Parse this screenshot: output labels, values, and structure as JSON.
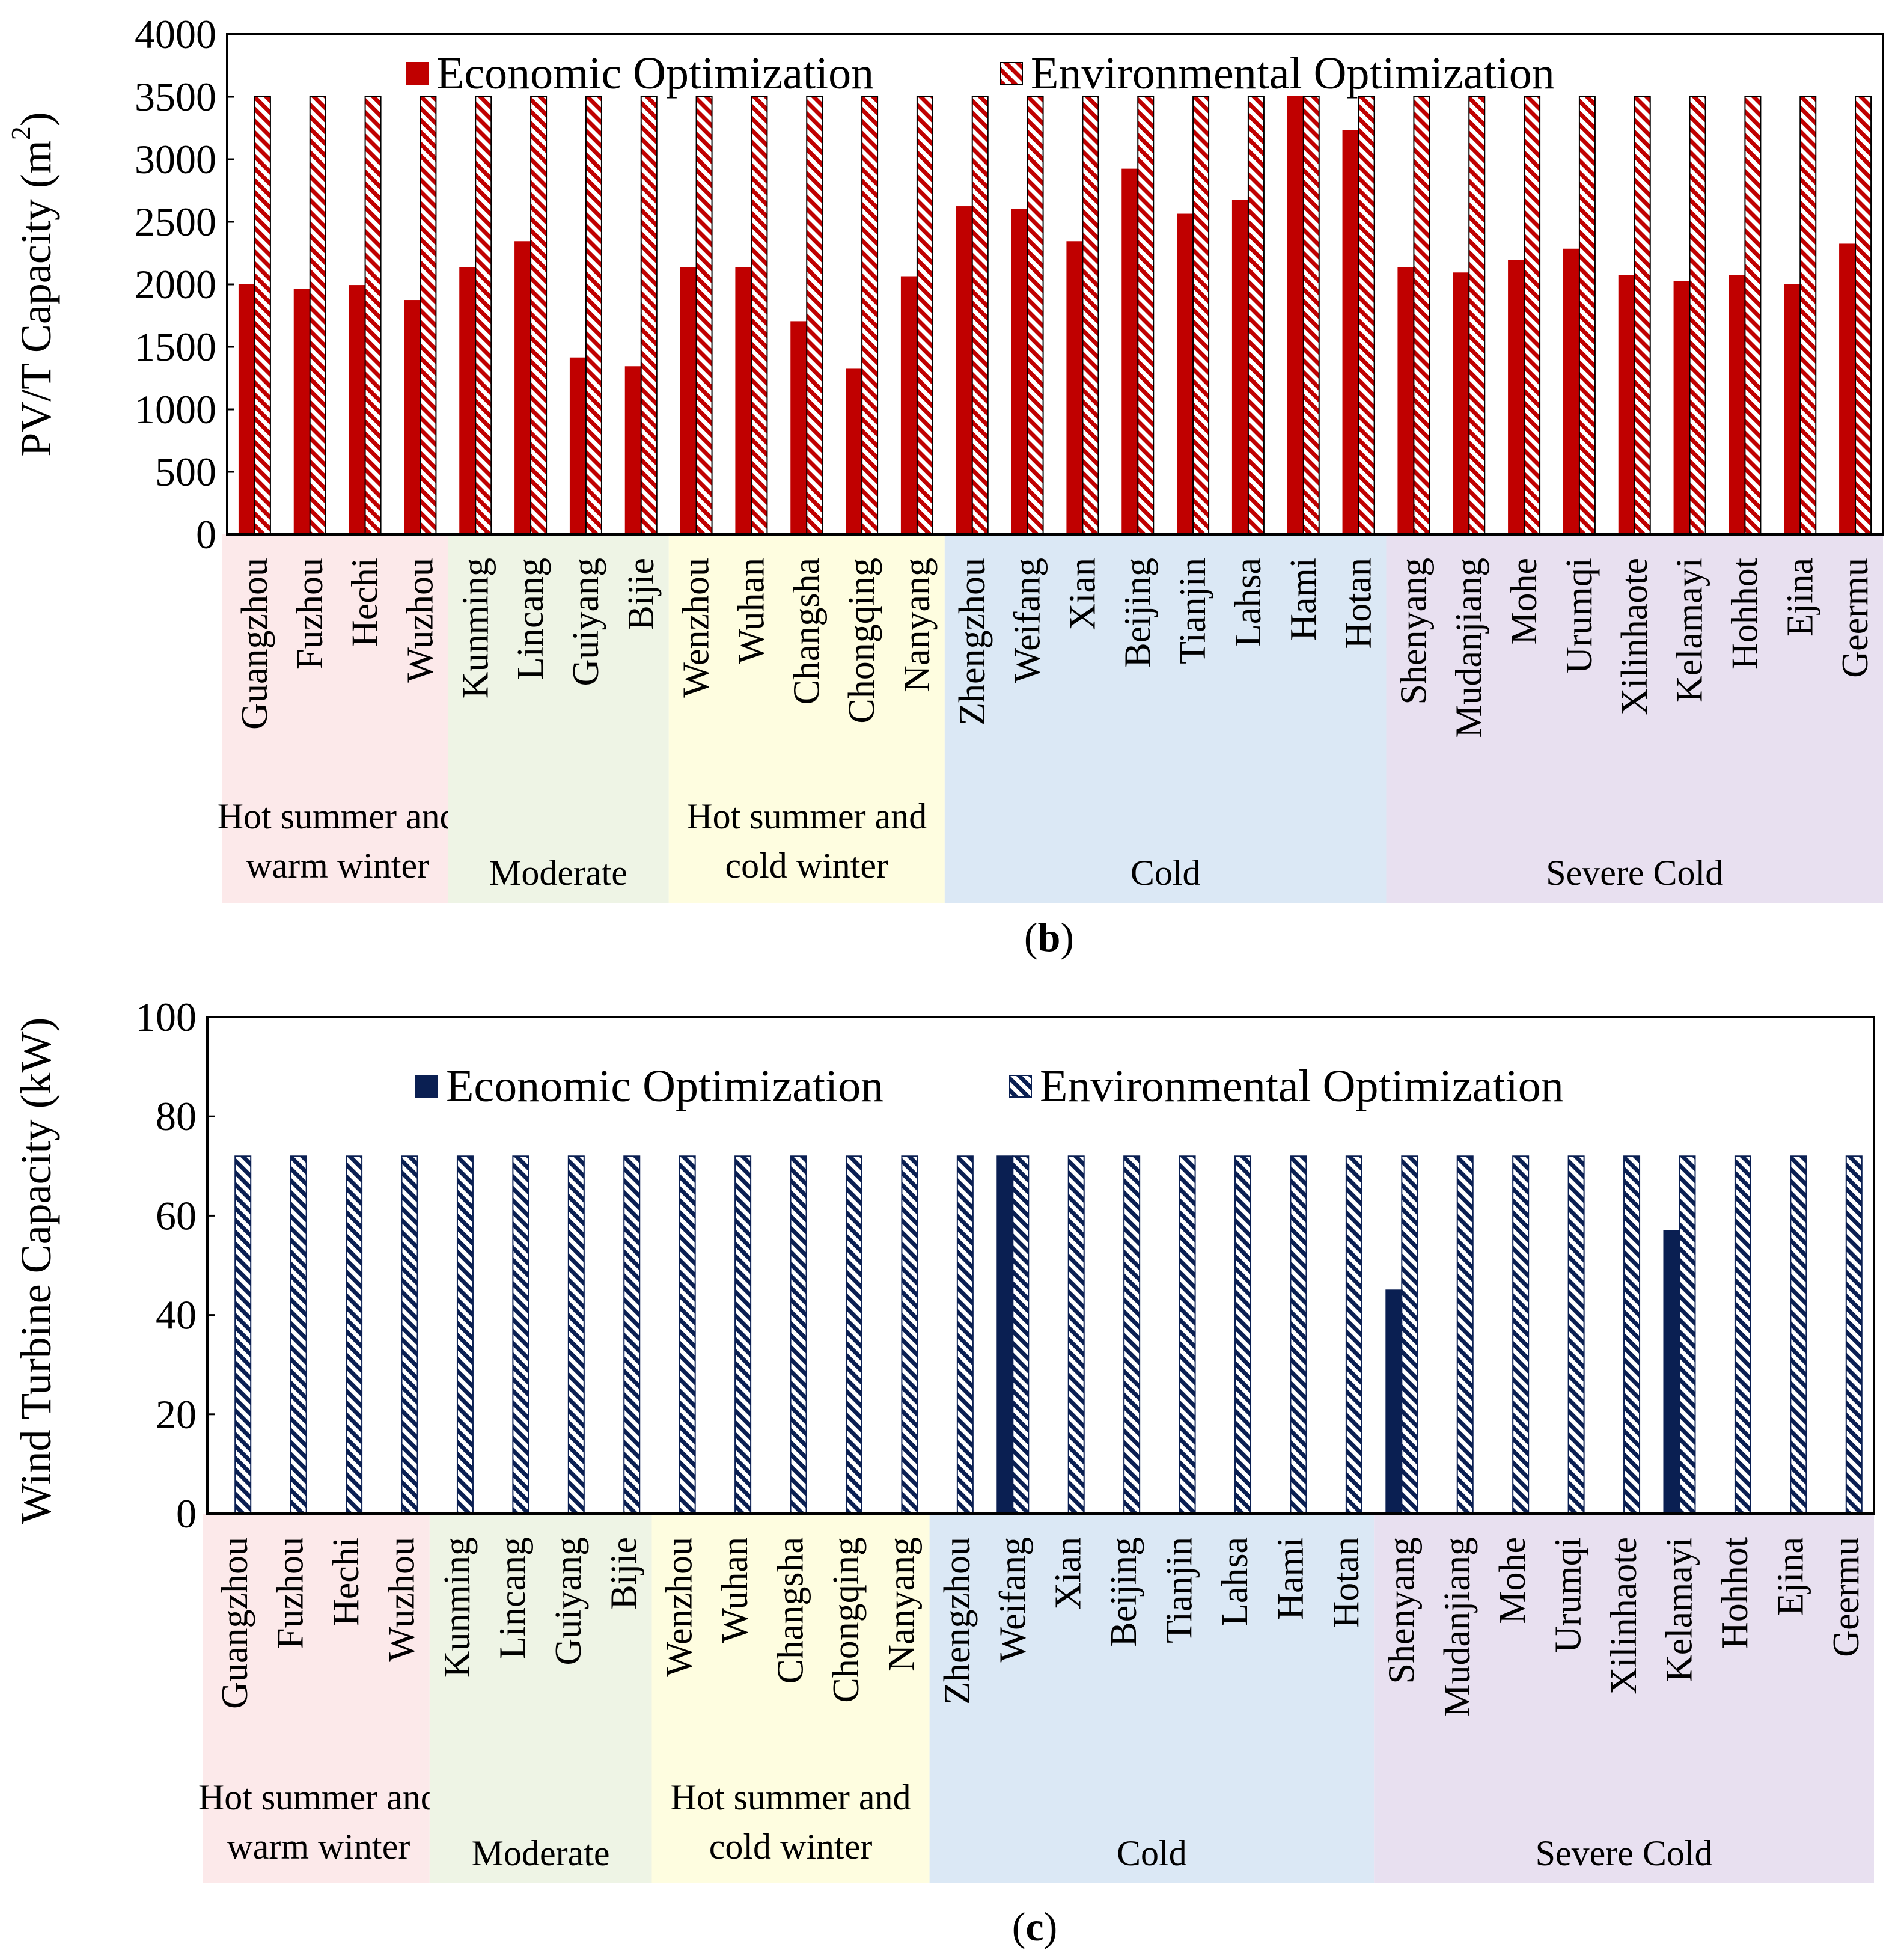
{
  "chart_data": [
    {
      "type": "bar",
      "panel_label": "b",
      "ylabel": "PV/T Capacity (m",
      "ylabel_sup": "2",
      "ylabel_close": ")",
      "ylim": [
        0,
        4000
      ],
      "yticks": [
        0,
        500,
        1000,
        1500,
        2000,
        2500,
        3000,
        3500,
        4000
      ],
      "legend_position": "top-center",
      "colors": {
        "series": "#c00000",
        "edge": "#000000"
      },
      "categories": [
        "Guangzhou",
        "Fuzhou",
        "Hechi",
        "Wuzhou",
        "Kunming",
        "Lincang",
        "Guiyang",
        "Bijie",
        "Wenzhou",
        "Wuhan",
        "Changsha",
        "Chongqing",
        "Nanyang",
        "Zhengzhou",
        "Weifang",
        "Xian",
        "Beijing",
        "Tianjin",
        "Lahsa",
        "Hami",
        "Hotan",
        "Shenyang",
        "Mudanjiang",
        "Mohe",
        "Urumqi",
        "Xilinhaote",
        "Kelamayi",
        "Hohhot",
        "Ejina",
        "Geermu"
      ],
      "series": [
        {
          "name": "Economic Optimization",
          "pattern": "solid",
          "values": [
            2000,
            1960,
            1990,
            1870,
            2130,
            2340,
            1410,
            1340,
            2130,
            2130,
            1700,
            1320,
            2060,
            2620,
            2600,
            2340,
            2920,
            2560,
            2670,
            3500,
            3230,
            2130,
            2090,
            2190,
            2280,
            2070,
            2020,
            2070,
            2000,
            2320
          ]
        },
        {
          "name": "Environmental Optimization",
          "pattern": "hatched",
          "values": [
            3500,
            3500,
            3500,
            3500,
            3500,
            3500,
            3500,
            3500,
            3500,
            3500,
            3500,
            3500,
            3500,
            3500,
            3500,
            3500,
            3500,
            3500,
            3500,
            3500,
            3500,
            3500,
            3500,
            3500,
            3500,
            3500,
            3500,
            3500,
            3500,
            3500
          ]
        }
      ],
      "climate_zones": [
        {
          "lines": [
            "Hot summer and",
            "warm winter"
          ],
          "count": 4,
          "color": "#fce9ea"
        },
        {
          "lines": [
            "Moderate"
          ],
          "count": 4,
          "color": "#eef4e5"
        },
        {
          "lines": [
            "Hot summer and",
            "cold winter"
          ],
          "count": 5,
          "color": "#fefde0"
        },
        {
          "lines": [
            "Cold"
          ],
          "count": 8,
          "color": "#dbe8f5"
        },
        {
          "lines": [
            "Severe Cold"
          ],
          "count": 9,
          "color": "#e8e0f0"
        }
      ]
    },
    {
      "type": "bar",
      "panel_label": "c",
      "ylabel": "Wind Turbine Capacity (kW)",
      "ylabel_sup": "",
      "ylabel_close": "",
      "ylim": [
        0,
        100
      ],
      "yticks": [
        0,
        20,
        40,
        60,
        80,
        100
      ],
      "legend_position": "top-center",
      "colors": {
        "series": "#0a1f52",
        "edge": "#0a1f52"
      },
      "categories": [
        "Guangzhou",
        "Fuzhou",
        "Hechi",
        "Wuzhou",
        "Kunming",
        "Lincang",
        "Guiyang",
        "Bijie",
        "Wenzhou",
        "Wuhan",
        "Changsha",
        "Chongqing",
        "Nanyang",
        "Zhengzhou",
        "Weifang",
        "Xian",
        "Beijing",
        "Tianjin",
        "Lahsa",
        "Hami",
        "Hotan",
        "Shenyang",
        "Mudanjiang",
        "Mohe",
        "Urumqi",
        "Xilinhaote",
        "Kelamayi",
        "Hohhot",
        "Ejina",
        "Geermu"
      ],
      "series": [
        {
          "name": "Economic Optimization",
          "pattern": "solid",
          "values": [
            0,
            0,
            0,
            0,
            0,
            0,
            0,
            0,
            0,
            0,
            0,
            0,
            0,
            0,
            72,
            0,
            0,
            0,
            0,
            0,
            0,
            45,
            0,
            0,
            0,
            0,
            57,
            0,
            0,
            0
          ]
        },
        {
          "name": "Environmental Optimization",
          "pattern": "hatched",
          "values": [
            72,
            72,
            72,
            72,
            72,
            72,
            72,
            72,
            72,
            72,
            72,
            72,
            72,
            72,
            72,
            72,
            72,
            72,
            72,
            72,
            72,
            72,
            72,
            72,
            72,
            72,
            72,
            72,
            72,
            72
          ]
        }
      ],
      "climate_zones": [
        {
          "lines": [
            "Hot summer and",
            "warm winter"
          ],
          "count": 4,
          "color": "#fce9ea"
        },
        {
          "lines": [
            "Moderate"
          ],
          "count": 4,
          "color": "#eef4e5"
        },
        {
          "lines": [
            "Hot summer and",
            "cold winter"
          ],
          "count": 5,
          "color": "#fefde0"
        },
        {
          "lines": [
            "Cold"
          ],
          "count": 8,
          "color": "#dbe8f5"
        },
        {
          "lines": [
            "Severe Cold"
          ],
          "count": 9,
          "color": "#e8e0f0"
        }
      ]
    }
  ]
}
